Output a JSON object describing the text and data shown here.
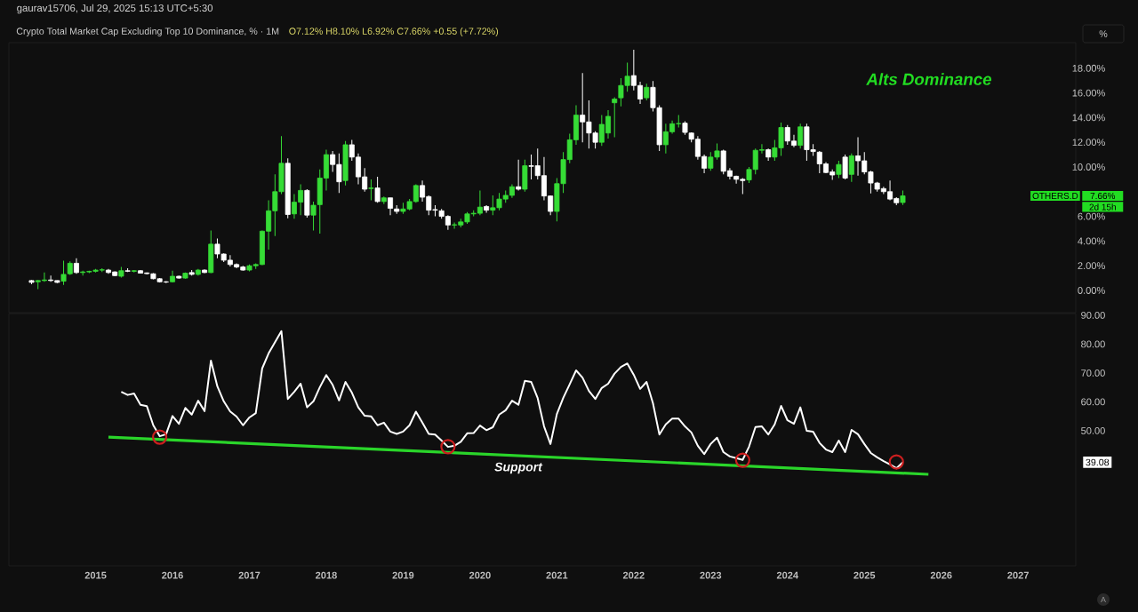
{
  "chart_data": [
    {
      "type": "candlestick",
      "title": "Crypto Total Market Cap Excluding Top 10 Dominance, % · 1M",
      "subtitle": "O7.12%  H8.10%  L6.92%  C7.66%  +0.55 (+7.72%)",
      "x": [
        "2014-03",
        "2014-04",
        "2014-05",
        "2014-06",
        "2014-07",
        "2014-08",
        "2014-09",
        "2014-10",
        "2014-11",
        "2014-12",
        "2015-01",
        "2015-02",
        "2015-03",
        "2015-04",
        "2015-05",
        "2015-06",
        "2015-07",
        "2015-08",
        "2015-09",
        "2015-10",
        "2015-11",
        "2015-12",
        "2016-01",
        "2016-02",
        "2016-03",
        "2016-04",
        "2016-05",
        "2016-06",
        "2016-07",
        "2016-08",
        "2016-09",
        "2016-10",
        "2016-11",
        "2016-12",
        "2017-01",
        "2017-02",
        "2017-03",
        "2017-04",
        "2017-05",
        "2017-06",
        "2017-07",
        "2017-08",
        "2017-09",
        "2017-10",
        "2017-11",
        "2017-12",
        "2018-01",
        "2018-02",
        "2018-03",
        "2018-04",
        "2018-05",
        "2018-06",
        "2018-07",
        "2018-08",
        "2018-09",
        "2018-10",
        "2018-11",
        "2018-12",
        "2019-01",
        "2019-02",
        "2019-03",
        "2019-04",
        "2019-05",
        "2019-06",
        "2019-07",
        "2019-08",
        "2019-09",
        "2019-10",
        "2019-11",
        "2019-12",
        "2020-01",
        "2020-02",
        "2020-03",
        "2020-04",
        "2020-05",
        "2020-06",
        "2020-07",
        "2020-08",
        "2020-09",
        "2020-10",
        "2020-11",
        "2020-12",
        "2021-01",
        "2021-02",
        "2021-03",
        "2021-04",
        "2021-05",
        "2021-06",
        "2021-07",
        "2021-08",
        "2021-09",
        "2021-10",
        "2021-11",
        "2021-12",
        "2022-01",
        "2022-02",
        "2022-03",
        "2022-04",
        "2022-05",
        "2022-06",
        "2022-07",
        "2022-08",
        "2022-09",
        "2022-10",
        "2022-11",
        "2022-12",
        "2023-01",
        "2023-02",
        "2023-03",
        "2023-04",
        "2023-05",
        "2023-06",
        "2023-07",
        "2023-08",
        "2023-09",
        "2023-10",
        "2023-11",
        "2023-12",
        "2024-01",
        "2024-02",
        "2024-03",
        "2024-04",
        "2024-05",
        "2024-06",
        "2024-07",
        "2024-08",
        "2024-09",
        "2024-10",
        "2024-11",
        "2024-12",
        "2025-01",
        "2025-02",
        "2025-03",
        "2025-04",
        "2025-05",
        "2025-06",
        "2025-07"
      ],
      "ohlc": [
        [
          0.8,
          0.85,
          0.5,
          0.65
        ],
        [
          0.7,
          0.85,
          0.1,
          0.8
        ],
        [
          0.8,
          1.45,
          0.7,
          0.85
        ],
        [
          0.85,
          1.2,
          0.7,
          0.8
        ],
        [
          0.8,
          0.8,
          0.6,
          0.65
        ],
        [
          0.75,
          2.4,
          0.45,
          1.3
        ],
        [
          1.35,
          2.35,
          1.25,
          2.2
        ],
        [
          2.2,
          2.6,
          1.35,
          1.45
        ],
        [
          1.45,
          1.6,
          1.2,
          1.5
        ],
        [
          1.5,
          1.6,
          1.4,
          1.55
        ],
        [
          1.55,
          1.75,
          1.45,
          1.65
        ],
        [
          1.65,
          1.8,
          1.5,
          1.67
        ],
        [
          1.65,
          1.75,
          1.35,
          1.45
        ],
        [
          1.5,
          1.55,
          1.15,
          1.2
        ],
        [
          1.15,
          1.9,
          1.05,
          1.6
        ],
        [
          1.6,
          1.8,
          1.5,
          1.55
        ],
        [
          1.55,
          1.65,
          1.45,
          1.6
        ],
        [
          1.6,
          1.65,
          1.4,
          1.4
        ],
        [
          1.42,
          1.45,
          1.3,
          1.36
        ],
        [
          1.35,
          1.4,
          0.9,
          0.95
        ],
        [
          0.95,
          1.0,
          0.65,
          0.7
        ],
        [
          0.7,
          0.75,
          0.6,
          0.68
        ],
        [
          0.7,
          1.6,
          0.65,
          1.15
        ],
        [
          1.15,
          1.2,
          0.95,
          1.0
        ],
        [
          1.0,
          1.45,
          0.95,
          1.4
        ],
        [
          1.45,
          1.65,
          1.2,
          1.3
        ],
        [
          1.3,
          1.75,
          1.2,
          1.65
        ],
        [
          1.65,
          1.7,
          1.4,
          1.45
        ],
        [
          1.45,
          4.85,
          1.4,
          3.75
        ],
        [
          3.75,
          4.2,
          2.6,
          2.95
        ],
        [
          2.95,
          3.0,
          2.3,
          2.45
        ],
        [
          2.45,
          2.85,
          1.95,
          2.1
        ],
        [
          2.1,
          2.2,
          1.8,
          1.9
        ],
        [
          1.9,
          2.0,
          1.6,
          1.65
        ],
        [
          1.65,
          2.1,
          1.55,
          2.0
        ],
        [
          2.0,
          2.2,
          1.75,
          2.1
        ],
        [
          2.1,
          4.85,
          2.05,
          4.8
        ],
        [
          4.8,
          7.3,
          3.3,
          6.45
        ],
        [
          6.45,
          9.4,
          4.4,
          8.0
        ],
        [
          8.0,
          12.5,
          7.8,
          10.3
        ],
        [
          10.3,
          10.7,
          5.85,
          6.15
        ],
        [
          6.2,
          7.8,
          5.8,
          7.15
        ],
        [
          7.15,
          8.6,
          6.1,
          8.1
        ],
        [
          8.1,
          8.2,
          5.9,
          6.1
        ],
        [
          6.1,
          7.2,
          4.85,
          6.9
        ],
        [
          6.95,
          9.8,
          4.6,
          9.1
        ],
        [
          9.1,
          11.4,
          8.1,
          11.0
        ],
        [
          11.0,
          11.3,
          9.6,
          10.2
        ],
        [
          10.2,
          11.1,
          7.9,
          8.8
        ],
        [
          8.9,
          12.1,
          8.5,
          11.8
        ],
        [
          11.8,
          12.2,
          10.5,
          10.8
        ],
        [
          10.8,
          11.1,
          8.6,
          9.2
        ],
        [
          9.2,
          9.9,
          8.0,
          8.2
        ],
        [
          8.25,
          9.0,
          7.3,
          8.3
        ],
        [
          8.3,
          9.2,
          7.1,
          7.2
        ],
        [
          7.2,
          7.6,
          7.0,
          7.5
        ],
        [
          7.5,
          7.5,
          6.1,
          6.65
        ],
        [
          6.6,
          6.9,
          6.2,
          6.4
        ],
        [
          6.4,
          7.1,
          6.2,
          6.6
        ],
        [
          6.6,
          7.4,
          6.5,
          7.2
        ],
        [
          7.2,
          8.6,
          7.1,
          8.5
        ],
        [
          8.5,
          8.9,
          7.2,
          7.55
        ],
        [
          7.6,
          7.7,
          6.1,
          6.5
        ],
        [
          6.55,
          6.9,
          6.0,
          6.5
        ],
        [
          6.45,
          6.6,
          5.8,
          6.0
        ],
        [
          6.0,
          6.1,
          4.9,
          5.3
        ],
        [
          5.3,
          5.5,
          5.0,
          5.32
        ],
        [
          5.3,
          5.8,
          5.1,
          5.55
        ],
        [
          5.55,
          6.35,
          5.4,
          6.2
        ],
        [
          6.2,
          6.5,
          6.0,
          6.25
        ],
        [
          6.25,
          8.1,
          6.1,
          6.75
        ],
        [
          6.8,
          6.9,
          6.3,
          6.5
        ],
        [
          6.5,
          7.7,
          6.1,
          6.7
        ],
        [
          6.7,
          7.9,
          6.5,
          7.4
        ],
        [
          7.4,
          8.1,
          7.1,
          7.7
        ],
        [
          7.7,
          8.6,
          7.5,
          8.4
        ],
        [
          8.4,
          10.6,
          8.1,
          8.2
        ],
        [
          8.2,
          10.6,
          8.0,
          10.1
        ],
        [
          10.1,
          11.0,
          9.0,
          10.05
        ],
        [
          10.1,
          11.5,
          9.0,
          9.3
        ],
        [
          9.3,
          10.8,
          7.3,
          7.65
        ],
        [
          7.65,
          7.7,
          6.1,
          6.4
        ],
        [
          6.4,
          9.1,
          5.6,
          8.65
        ],
        [
          8.65,
          11.2,
          7.9,
          10.6
        ],
        [
          10.6,
          12.7,
          10.3,
          12.2
        ],
        [
          12.2,
          15.0,
          11.8,
          14.2
        ],
        [
          14.2,
          17.6,
          12.0,
          13.65
        ],
        [
          13.65,
          15.4,
          11.5,
          12.75
        ],
        [
          12.75,
          12.9,
          11.5,
          12.0
        ],
        [
          12.0,
          14.2,
          11.7,
          13.45
        ],
        [
          12.75,
          14.6,
          12.3,
          14.1
        ],
        [
          15.2,
          15.65,
          12.4,
          15.5
        ],
        [
          15.6,
          17.2,
          14.9,
          16.6
        ],
        [
          16.6,
          18.45,
          16.1,
          17.35
        ],
        [
          17.4,
          19.5,
          16.2,
          16.6
        ],
        [
          16.6,
          16.9,
          15.1,
          15.5
        ],
        [
          15.6,
          16.75,
          15.4,
          16.45
        ],
        [
          16.45,
          16.95,
          14.5,
          14.8
        ],
        [
          14.8,
          15.0,
          11.3,
          11.8
        ],
        [
          11.8,
          13.5,
          11.1,
          12.85
        ],
        [
          12.85,
          13.75,
          12.7,
          13.5
        ],
        [
          13.5,
          14.2,
          13.2,
          13.52
        ],
        [
          13.55,
          13.7,
          12.6,
          12.8
        ],
        [
          12.75,
          12.8,
          12.0,
          12.25
        ],
        [
          12.25,
          12.5,
          10.6,
          10.85
        ],
        [
          10.85,
          11.0,
          9.5,
          9.9
        ],
        [
          9.9,
          11.2,
          9.7,
          10.8
        ],
        [
          10.8,
          11.9,
          10.6,
          11.3
        ],
        [
          11.3,
          11.4,
          9.4,
          9.65
        ],
        [
          9.7,
          9.9,
          9.0,
          9.25
        ],
        [
          9.25,
          9.3,
          8.65,
          9.0
        ],
        [
          9.0,
          9.1,
          7.8,
          8.9
        ],
        [
          8.95,
          10.0,
          8.7,
          9.8
        ],
        [
          9.8,
          11.5,
          9.4,
          11.35
        ],
        [
          11.35,
          11.85,
          11.1,
          11.4
        ],
        [
          11.4,
          11.5,
          10.5,
          10.8
        ],
        [
          10.8,
          12.2,
          10.5,
          11.55
        ],
        [
          11.55,
          13.6,
          10.9,
          13.2
        ],
        [
          13.2,
          13.4,
          11.8,
          12.1
        ],
        [
          12.1,
          12.6,
          11.6,
          11.75
        ],
        [
          11.75,
          13.5,
          11.5,
          13.25
        ],
        [
          13.25,
          13.5,
          10.5,
          11.4
        ],
        [
          11.4,
          11.85,
          10.9,
          11.25
        ],
        [
          11.2,
          11.3,
          9.5,
          10.25
        ],
        [
          10.25,
          10.4,
          9.5,
          9.55
        ],
        [
          9.6,
          9.8,
          8.95,
          9.35
        ],
        [
          9.4,
          10.5,
          9.1,
          10.2
        ],
        [
          10.8,
          11.0,
          9.0,
          9.1
        ],
        [
          9.4,
          11.1,
          8.8,
          10.9
        ],
        [
          10.9,
          12.4,
          9.3,
          10.5
        ],
        [
          10.5,
          11.2,
          9.4,
          9.6
        ],
        [
          9.6,
          9.7,
          7.85,
          8.7
        ],
        [
          8.7,
          8.8,
          8.0,
          8.2
        ],
        [
          8.25,
          8.4,
          7.8,
          8.0
        ],
        [
          8.0,
          8.9,
          7.3,
          7.4
        ],
        [
          7.45,
          7.55,
          6.9,
          7.1
        ],
        [
          7.12,
          8.1,
          6.92,
          7.66
        ]
      ],
      "colors": [
        "#ffffff",
        "#36dc36",
        "#36dc36",
        "#ffffff",
        "#ffffff",
        "#36dc36",
        "#36dc36",
        "#ffffff",
        "#36dc36",
        "#36dc36",
        "#36dc36",
        "#36dc36",
        "#ffffff",
        "#ffffff",
        "#36dc36",
        "#ffffff",
        "#36dc36",
        "#ffffff",
        "#ffffff",
        "#ffffff",
        "#ffffff",
        "#ffffff",
        "#36dc36",
        "#ffffff",
        "#36dc36",
        "#ffffff",
        "#36dc36",
        "#ffffff",
        "#36dc36",
        "#ffffff",
        "#ffffff",
        "#ffffff",
        "#ffffff",
        "#ffffff",
        "#36dc36",
        "#36dc36",
        "#36dc36",
        "#36dc36",
        "#36dc36",
        "#36dc36",
        "#ffffff",
        "#36dc36",
        "#36dc36",
        "#ffffff",
        "#36dc36",
        "#36dc36",
        "#36dc36",
        "#ffffff",
        "#ffffff",
        "#36dc36",
        "#ffffff",
        "#ffffff",
        "#ffffff",
        "#36dc36",
        "#ffffff",
        "#36dc36",
        "#ffffff",
        "#ffffff",
        "#36dc36",
        "#36dc36",
        "#36dc36",
        "#ffffff",
        "#ffffff",
        "#ffffff",
        "#ffffff",
        "#ffffff",
        "#36dc36",
        "#36dc36",
        "#36dc36",
        "#36dc36",
        "#36dc36",
        "#ffffff",
        "#36dc36",
        "#36dc36",
        "#36dc36",
        "#36dc36",
        "#ffffff",
        "#36dc36",
        "#ffffff",
        "#ffffff",
        "#ffffff",
        "#ffffff",
        "#36dc36",
        "#36dc36",
        "#36dc36",
        "#36dc36",
        "#ffffff",
        "#ffffff",
        "#ffffff",
        "#36dc36",
        "#36dc36",
        "#36dc36",
        "#36dc36",
        "#36dc36",
        "#ffffff",
        "#ffffff",
        "#36dc36",
        "#ffffff",
        "#ffffff",
        "#36dc36",
        "#36dc36",
        "#36dc36",
        "#ffffff",
        "#ffffff",
        "#ffffff",
        "#ffffff",
        "#36dc36",
        "#36dc36",
        "#ffffff",
        "#ffffff",
        "#ffffff",
        "#ffffff",
        "#36dc36",
        "#36dc36",
        "#36dc36",
        "#ffffff",
        "#36dc36",
        "#36dc36",
        "#ffffff",
        "#ffffff",
        "#36dc36",
        "#ffffff",
        "#ffffff",
        "#ffffff",
        "#ffffff",
        "#ffffff",
        "#36dc36",
        "#ffffff",
        "#36dc36",
        "#ffffff",
        "#ffffff",
        "#ffffff",
        "#ffffff",
        "#ffffff",
        "#ffffff",
        "#ffffff",
        "#36dc36"
      ],
      "xlim": [
        "2013-11-15",
        "2027-10"
      ],
      "ylim": [
        -1.8,
        20.07
      ],
      "yticks": [
        {
          "value": 0,
          "label": "0.00%"
        },
        {
          "value": 2,
          "label": "2.00%"
        },
        {
          "value": 4,
          "label": "4.00%"
        },
        {
          "value": 6,
          "label": "6.00%"
        },
        {
          "value": 10,
          "label": "10.00%"
        },
        {
          "value": 12,
          "label": "12.00%"
        },
        {
          "value": 14,
          "label": "14.00%"
        },
        {
          "value": 16,
          "label": "16.00%"
        },
        {
          "value": 18,
          "label": "18.00%"
        }
      ],
      "tick_labels": "y",
      "annotations": [
        "Alts Dominance",
        "OTHERS.D",
        "7.66%",
        "2d 15h",
        "%",
        "gaurav15706, Jul 29, 2025 15:13 UTC+5:30"
      ]
    },
    {
      "type": "line",
      "x": [
        "2015-05",
        "2015-06",
        "2015-07",
        "2015-08",
        "2015-09",
        "2015-10",
        "2015-11",
        "2015-12",
        "2016-01",
        "2016-02",
        "2016-03",
        "2016-04",
        "2016-05",
        "2016-06",
        "2016-07",
        "2016-08",
        "2016-09",
        "2016-10",
        "2016-11",
        "2016-12",
        "2017-01",
        "2017-02",
        "2017-03",
        "2017-04",
        "2017-05",
        "2017-06",
        "2017-07",
        "2017-08",
        "2017-09",
        "2017-10",
        "2017-11",
        "2017-12",
        "2018-01",
        "2018-02",
        "2018-03",
        "2018-04",
        "2018-05",
        "2018-06",
        "2018-07",
        "2018-08",
        "2018-09",
        "2018-10",
        "2018-11",
        "2018-12",
        "2019-01",
        "2019-02",
        "2019-03",
        "2019-04",
        "2019-05",
        "2019-06",
        "2019-07",
        "2019-08",
        "2019-09",
        "2019-10",
        "2019-11",
        "2019-12",
        "2020-01",
        "2020-02",
        "2020-03",
        "2020-04",
        "2020-05",
        "2020-06",
        "2020-07",
        "2020-08",
        "2020-09",
        "2020-10",
        "2020-11",
        "2020-12",
        "2021-01",
        "2021-02",
        "2021-03",
        "2021-04",
        "2021-05",
        "2021-06",
        "2021-07",
        "2021-08",
        "2021-09",
        "2021-10",
        "2021-11",
        "2021-12",
        "2022-01",
        "2022-02",
        "2022-03",
        "2022-04",
        "2022-05",
        "2022-06",
        "2022-07",
        "2022-08",
        "2022-09",
        "2022-10",
        "2022-11",
        "2022-12",
        "2023-01",
        "2023-02",
        "2023-03",
        "2023-04",
        "2023-05",
        "2023-06",
        "2023-07",
        "2023-08",
        "2023-09",
        "2023-10",
        "2023-11",
        "2023-12",
        "2024-01",
        "2024-02",
        "2024-03",
        "2024-04",
        "2024-05",
        "2024-06",
        "2024-07",
        "2024-08",
        "2024-09",
        "2024-10",
        "2024-11",
        "2024-12",
        "2025-01",
        "2025-02",
        "2025-03",
        "2025-04",
        "2025-05",
        "2025-06",
        "2025-07"
      ],
      "series": [
        {
          "color": "#ffffff",
          "values": [
            63.5,
            62.4,
            62.9,
            59.0,
            58.5,
            51.9,
            48.1,
            48.8,
            55.1,
            52.4,
            57.9,
            55.6,
            60.4,
            56.8,
            74.3,
            65.4,
            60.2,
            56.7,
            54.9,
            51.9,
            54.6,
            56.1,
            71.6,
            76.8,
            80.7,
            84.5,
            61.0,
            63.5,
            66.3,
            58.1,
            60.2,
            65.1,
            69.3,
            65.9,
            60.5,
            66.9,
            63.2,
            58.1,
            55.2,
            55.0,
            51.9,
            52.8,
            49.7,
            48.9,
            49.7,
            51.9,
            56.6,
            52.8,
            48.9,
            48.7,
            46.6,
            44.4,
            44.8,
            46.2,
            49.1,
            49.2,
            51.8,
            50.2,
            51.2,
            55.6,
            57.1,
            60.4,
            59.0,
            67.3,
            66.9,
            61.3,
            51.5,
            45.4,
            55.8,
            61.4,
            66.1,
            70.9,
            68.4,
            63.8,
            61.0,
            64.8,
            66.3,
            69.8,
            72.1,
            73.3,
            69.4,
            64.5,
            66.9,
            59.5,
            48.7,
            52.2,
            54.2,
            54.2,
            51.5,
            49.4,
            44.8,
            41.9,
            45.4,
            47.6,
            42.6,
            41.1,
            40.5,
            39.9,
            44.5,
            51.3,
            51.5,
            48.7,
            52.2,
            58.6,
            53.6,
            52.4,
            58.1,
            50.0,
            49.7,
            45.8,
            43.5,
            42.6,
            46.6,
            42.6,
            50.3,
            48.8,
            45.4,
            42.3,
            40.8,
            39.5,
            38.3,
            37.0,
            39.08
          ]
        },
        {
          "type": "line",
          "color": "#2ad52a",
          "x": [
            "2015-03",
            "2025-11"
          ],
          "values": [
            47.8,
            34.9
          ]
        },
        {
          "type": "scatter",
          "color": "#cc1f1f",
          "marker": "circle",
          "x": [
            "2015-11",
            "2019-08",
            "2023-06",
            "2025-06"
          ],
          "values": [
            47.8,
            44.5,
            39.8,
            39.2
          ]
        }
      ],
      "xlim": [
        "2013-11-15",
        "2027-10"
      ],
      "xticks": [
        "2015",
        "2016",
        "2017",
        "2018",
        "2019",
        "2020",
        "2021",
        "2022",
        "2023",
        "2024",
        "2025",
        "2026",
        "2027"
      ],
      "ylim": [
        3.2,
        90.6
      ],
      "yticks": [
        {
          "value": 50,
          "label": "50.00"
        },
        {
          "value": 60,
          "label": "60.00"
        },
        {
          "value": 70,
          "label": "70.00"
        },
        {
          "value": 80,
          "label": "80.00"
        },
        {
          "value": 90,
          "label": "90.00"
        }
      ],
      "annotations": [
        "Support",
        "39.08",
        "A"
      ]
    }
  ]
}
